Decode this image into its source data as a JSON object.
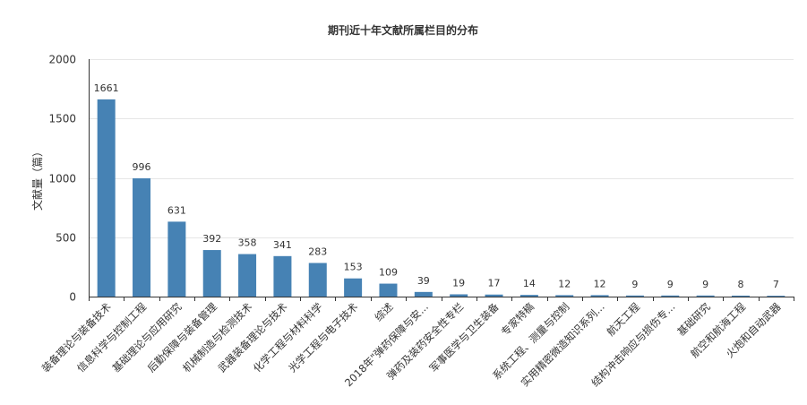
{
  "chart_data": {
    "type": "bar",
    "title": "期刊近十年文献所属栏目的分布",
    "xlabel": "",
    "ylabel": "文献量（篇）",
    "ylim": [
      0,
      2000
    ],
    "yticks": [
      0,
      500,
      1000,
      1500,
      2000
    ],
    "grid": true,
    "legend": "none",
    "colors": {
      "bar": "#4682b4",
      "grid": "#e6e6e6",
      "axis": "#333333",
      "text": "#333333"
    },
    "categories": [
      "装备理论与装备技术",
      "信息科学与控制工程",
      "基础理论与应用研究",
      "后勤保障与装备管理",
      "机械制造与检测技术",
      "武器装备理论与技术",
      "化学工程与材料科学",
      "光学工程与电子技术",
      "综述",
      "2018年\"弹药保障与安...",
      "弹药及装药安全性专栏",
      "军事医学与卫生装备",
      "专家特稿",
      "系统工程、测量与控制",
      "实用精密微造知识系列...",
      "航天工程",
      "结构冲击响应与损伤专...",
      "基础研究",
      "航空和航海工程",
      "火炮和自动武器"
    ],
    "values": [
      1661,
      996,
      631,
      392,
      358,
      341,
      283,
      153,
      109,
      39,
      19,
      17,
      14,
      12,
      12,
      9,
      9,
      9,
      8,
      7
    ]
  }
}
